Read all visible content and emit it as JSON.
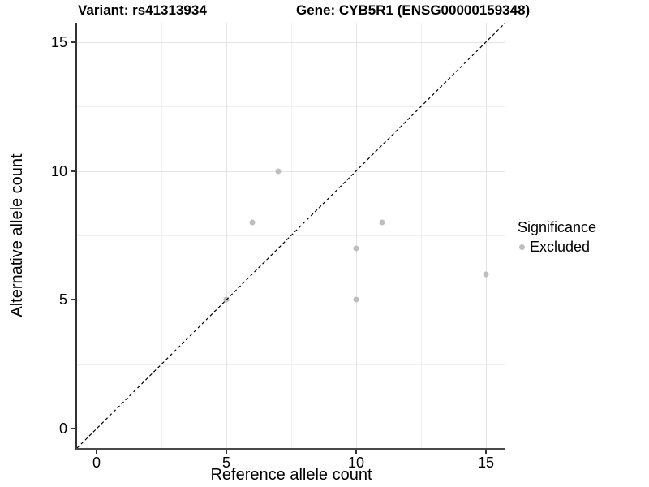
{
  "chart_data": {
    "type": "scatter",
    "title_left": "Variant: rs41313934",
    "title_right": "Gene: CYB5R1 (ENSG00000159348)",
    "xlabel": "Reference allele count",
    "ylabel": "Alternative allele count",
    "xlim": [
      -0.75,
      15.75
    ],
    "ylim": [
      -0.75,
      15.75
    ],
    "x_ticks": [
      0,
      5,
      10,
      15
    ],
    "y_ticks": [
      0,
      5,
      10,
      15
    ],
    "x_minor_ticks": [
      2.5,
      7.5,
      12.5
    ],
    "y_minor_ticks": [
      2.5,
      7.5,
      12.5
    ],
    "grid": true,
    "legend_position": "right",
    "series": [
      {
        "name": "Excluded",
        "color": "#bebebe",
        "points": [
          [
            5,
            5
          ],
          [
            6,
            8
          ],
          [
            7,
            10
          ],
          [
            10,
            5
          ],
          [
            10,
            7
          ],
          [
            11,
            8
          ],
          [
            15,
            6
          ]
        ]
      }
    ],
    "reference_line": {
      "kind": "identity",
      "style": "dashed",
      "color": "#000000",
      "dash": "4 3"
    }
  },
  "legend": {
    "title": "Significance",
    "items": [
      {
        "label": "Excluded",
        "color": "#bebebe"
      }
    ]
  },
  "colors": {
    "background": "#ffffff",
    "axis_line": "#333333",
    "grid_major": "#e4e4e4",
    "grid_minor": "#f0f0f0",
    "point": "#bebebe",
    "text": "#000000"
  }
}
